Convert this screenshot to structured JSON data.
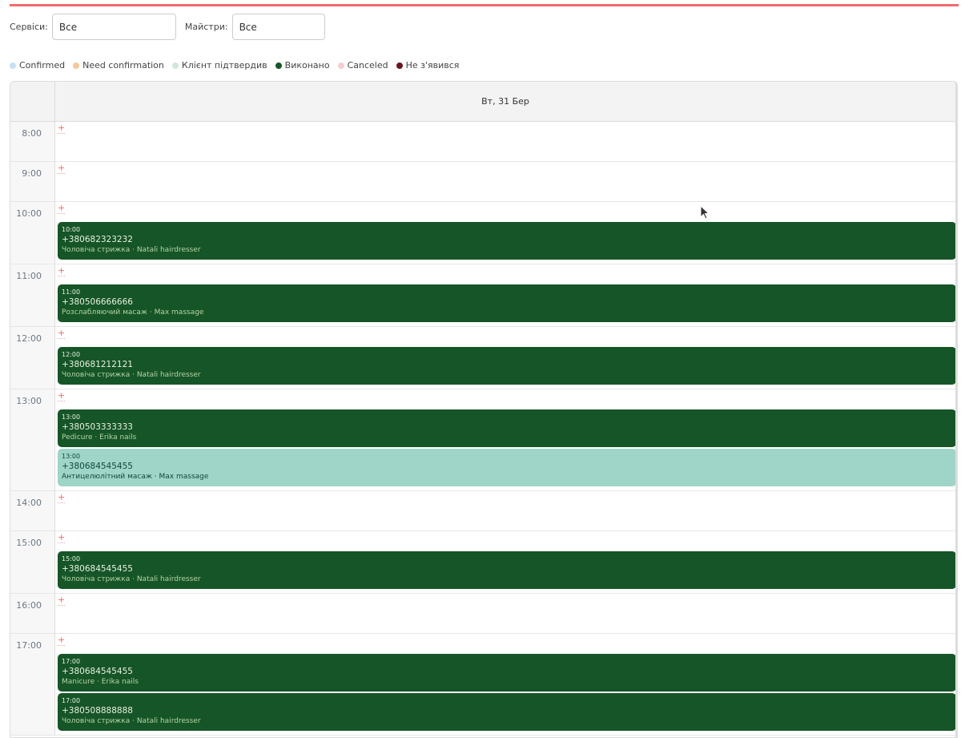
{
  "filters": {
    "services_label": "Сервіси:",
    "services_value": "Все",
    "masters_label": "Майстри:",
    "masters_value": "Все"
  },
  "legend": [
    {
      "label": "Confirmed",
      "color": "#c6dff5"
    },
    {
      "label": "Need confirmation",
      "color": "#f7c99a"
    },
    {
      "label": "Клієнт підтвердив",
      "color": "#cfe8d7"
    },
    {
      "label": "Виконано",
      "color": "#165527"
    },
    {
      "label": "Canceled",
      "color": "#f2cfd3"
    },
    {
      "label": "Не з'явився",
      "color": "#6b1420"
    }
  ],
  "calendar": {
    "day_header": "Вт, 31 Бер",
    "add_symbol": "+",
    "slots": [
      {
        "time": "8:00",
        "events": []
      },
      {
        "time": "9:00",
        "events": []
      },
      {
        "time": "10:00",
        "events": [
          {
            "time": "10:00",
            "phone": "+380682323232",
            "details": "Чоловіча стрижка · Natali hairdresser",
            "status": "Виконано"
          }
        ]
      },
      {
        "time": "11:00",
        "events": [
          {
            "time": "11:00",
            "phone": "+380506666666",
            "details": "Розслабляючий масаж · Max massage",
            "status": "Виконано"
          }
        ]
      },
      {
        "time": "12:00",
        "events": [
          {
            "time": "12:00",
            "phone": "+380681212121",
            "details": "Чоловіча стрижка · Natali hairdresser",
            "status": "Виконано"
          }
        ]
      },
      {
        "time": "13:00",
        "events": [
          {
            "time": "13:00",
            "phone": "+380503333333",
            "details": "Pedicure · Erika nails",
            "status": "Виконано"
          },
          {
            "time": "13:00",
            "phone": "+380684545455",
            "details": "Антицелюлітний масаж · Max massage",
            "status": "Клієнт підтвердив"
          }
        ]
      },
      {
        "time": "14:00",
        "events": []
      },
      {
        "time": "15:00",
        "events": [
          {
            "time": "15:00",
            "phone": "+380684545455",
            "details": "Чоловіча стрижка · Natali hairdresser",
            "status": "Виконано"
          }
        ]
      },
      {
        "time": "16:00",
        "events": []
      },
      {
        "time": "17:00",
        "events": [
          {
            "time": "17:00",
            "phone": "+380684545455",
            "details": "Manicure · Erika nails",
            "status": "Виконано"
          },
          {
            "time": "17:00",
            "phone": "+380508888888",
            "details": "Чоловіча стрижка · Natali hairdresser",
            "status": "Виконано"
          }
        ]
      }
    ]
  }
}
